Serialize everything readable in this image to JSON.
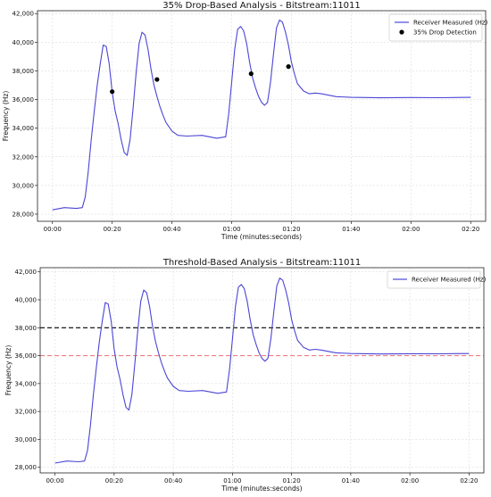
{
  "chart_data": [
    {
      "type": "line",
      "title": "35% Drop-Based Analysis - Bitstream:11011",
      "xlabel": "Time (minutes:seconds)",
      "ylabel": "Frequency (Hz)",
      "xlim": [
        -5,
        145
      ],
      "ylim": [
        27500,
        42200
      ],
      "xticks": [
        0,
        20,
        40,
        60,
        80,
        100,
        120,
        140
      ],
      "xtick_labels": [
        "00:00",
        "00:20",
        "00:40",
        "01:00",
        "01:20",
        "01:40",
        "02:00",
        "02:20"
      ],
      "yticks": [
        28000,
        30000,
        32000,
        34000,
        36000,
        38000,
        40000,
        42000
      ],
      "ytick_labels": [
        "28,000",
        "30,000",
        "32,000",
        "34,000",
        "36,000",
        "38,000",
        "40,000",
        "42,000"
      ],
      "grid": true,
      "legend_position": "top-right",
      "series": [
        {
          "name": "Receiver Measured (Hz)",
          "color": "#4b45d6",
          "x": [
            0,
            4,
            8,
            10,
            11,
            12,
            13,
            14,
            15,
            16,
            17,
            18,
            19,
            20,
            21,
            22,
            23,
            24,
            25,
            26,
            27,
            28,
            29,
            30,
            31,
            32,
            33,
            34,
            35,
            36,
            37,
            38,
            40,
            42,
            45,
            50,
            55,
            58,
            59,
            60,
            61,
            62,
            63,
            64,
            65,
            66,
            67,
            68,
            69,
            70,
            71,
            72,
            73,
            74,
            75,
            76,
            77,
            78,
            79,
            80,
            81,
            82,
            84,
            86,
            88,
            90,
            95,
            100,
            110,
            120,
            130,
            140
          ],
          "values": [
            28300,
            28450,
            28400,
            28450,
            29200,
            31000,
            33200,
            35200,
            37000,
            38500,
            39800,
            39700,
            38500,
            36500,
            35200,
            34300,
            33200,
            32300,
            32100,
            33200,
            35400,
            37800,
            39900,
            40700,
            40500,
            39500,
            38100,
            37000,
            36200,
            35500,
            34900,
            34400,
            33800,
            33500,
            33450,
            33500,
            33300,
            33400,
            35000,
            37200,
            39500,
            40900,
            41100,
            40800,
            39900,
            38600,
            37500,
            36800,
            36200,
            35800,
            35600,
            35800,
            37200,
            39200,
            41000,
            41550,
            41400,
            40700,
            39800,
            38600,
            37800,
            37100,
            36600,
            36400,
            36450,
            36400,
            36200,
            36150,
            36120,
            36140,
            36130,
            36150
          ]
        }
      ],
      "markers": {
        "name": "35% Drop Detection",
        "color": "#000000",
        "x": [
          20,
          35,
          66.5,
          79
        ],
        "y": [
          36550,
          37400,
          37800,
          38300
        ]
      }
    },
    {
      "type": "line",
      "title": "Threshold-Based Analysis - Bitstream:11011",
      "xlabel": "Time (minutes:seconds)",
      "ylabel": "Frequency (Hz)",
      "xlim": [
        -5,
        145
      ],
      "ylim": [
        27600,
        42300
      ],
      "xticks": [
        0,
        20,
        40,
        60,
        80,
        100,
        120,
        140
      ],
      "xtick_labels": [
        "00:00",
        "00:20",
        "00:40",
        "01:00",
        "01:20",
        "01:40",
        "02:00",
        "02:20"
      ],
      "yticks": [
        28000,
        30000,
        32000,
        34000,
        36000,
        38000,
        40000,
        42000
      ],
      "ytick_labels": [
        "28,000",
        "30,000",
        "32,000",
        "34,000",
        "36,000",
        "38,000",
        "40,000",
        "42,000"
      ],
      "grid": true,
      "legend_position": "top-right",
      "series": [
        {
          "name": "Receiver Measured (Hz)",
          "color": "#4b45d6",
          "x": [
            0,
            4,
            8,
            10,
            11,
            12,
            13,
            14,
            15,
            16,
            17,
            18,
            19,
            20,
            21,
            22,
            23,
            24,
            25,
            26,
            27,
            28,
            29,
            30,
            31,
            32,
            33,
            34,
            35,
            36,
            37,
            38,
            40,
            42,
            45,
            50,
            55,
            58,
            59,
            60,
            61,
            62,
            63,
            64,
            65,
            66,
            67,
            68,
            69,
            70,
            71,
            72,
            73,
            74,
            75,
            76,
            77,
            78,
            79,
            80,
            81,
            82,
            84,
            86,
            88,
            90,
            95,
            100,
            110,
            120,
            130,
            140
          ],
          "values": [
            28300,
            28450,
            28400,
            28450,
            29200,
            31000,
            33200,
            35200,
            37000,
            38500,
            39800,
            39700,
            38500,
            36500,
            35200,
            34300,
            33200,
            32300,
            32100,
            33200,
            35400,
            37800,
            39900,
            40700,
            40500,
            39500,
            38100,
            37000,
            36200,
            35500,
            34900,
            34400,
            33800,
            33500,
            33450,
            33500,
            33300,
            33400,
            35000,
            37200,
            39500,
            40900,
            41100,
            40800,
            39900,
            38600,
            37500,
            36800,
            36200,
            35800,
            35600,
            35800,
            37200,
            39200,
            41000,
            41550,
            41400,
            40700,
            39800,
            38600,
            37800,
            37100,
            36600,
            36400,
            36450,
            36400,
            36200,
            36150,
            36120,
            36140,
            36130,
            36150
          ]
        }
      ],
      "threshold_lines": [
        {
          "y": 38000,
          "color": "#000000",
          "style": "dashed"
        },
        {
          "y": 36000,
          "color": "#f08080",
          "style": "dashed"
        }
      ]
    }
  ]
}
